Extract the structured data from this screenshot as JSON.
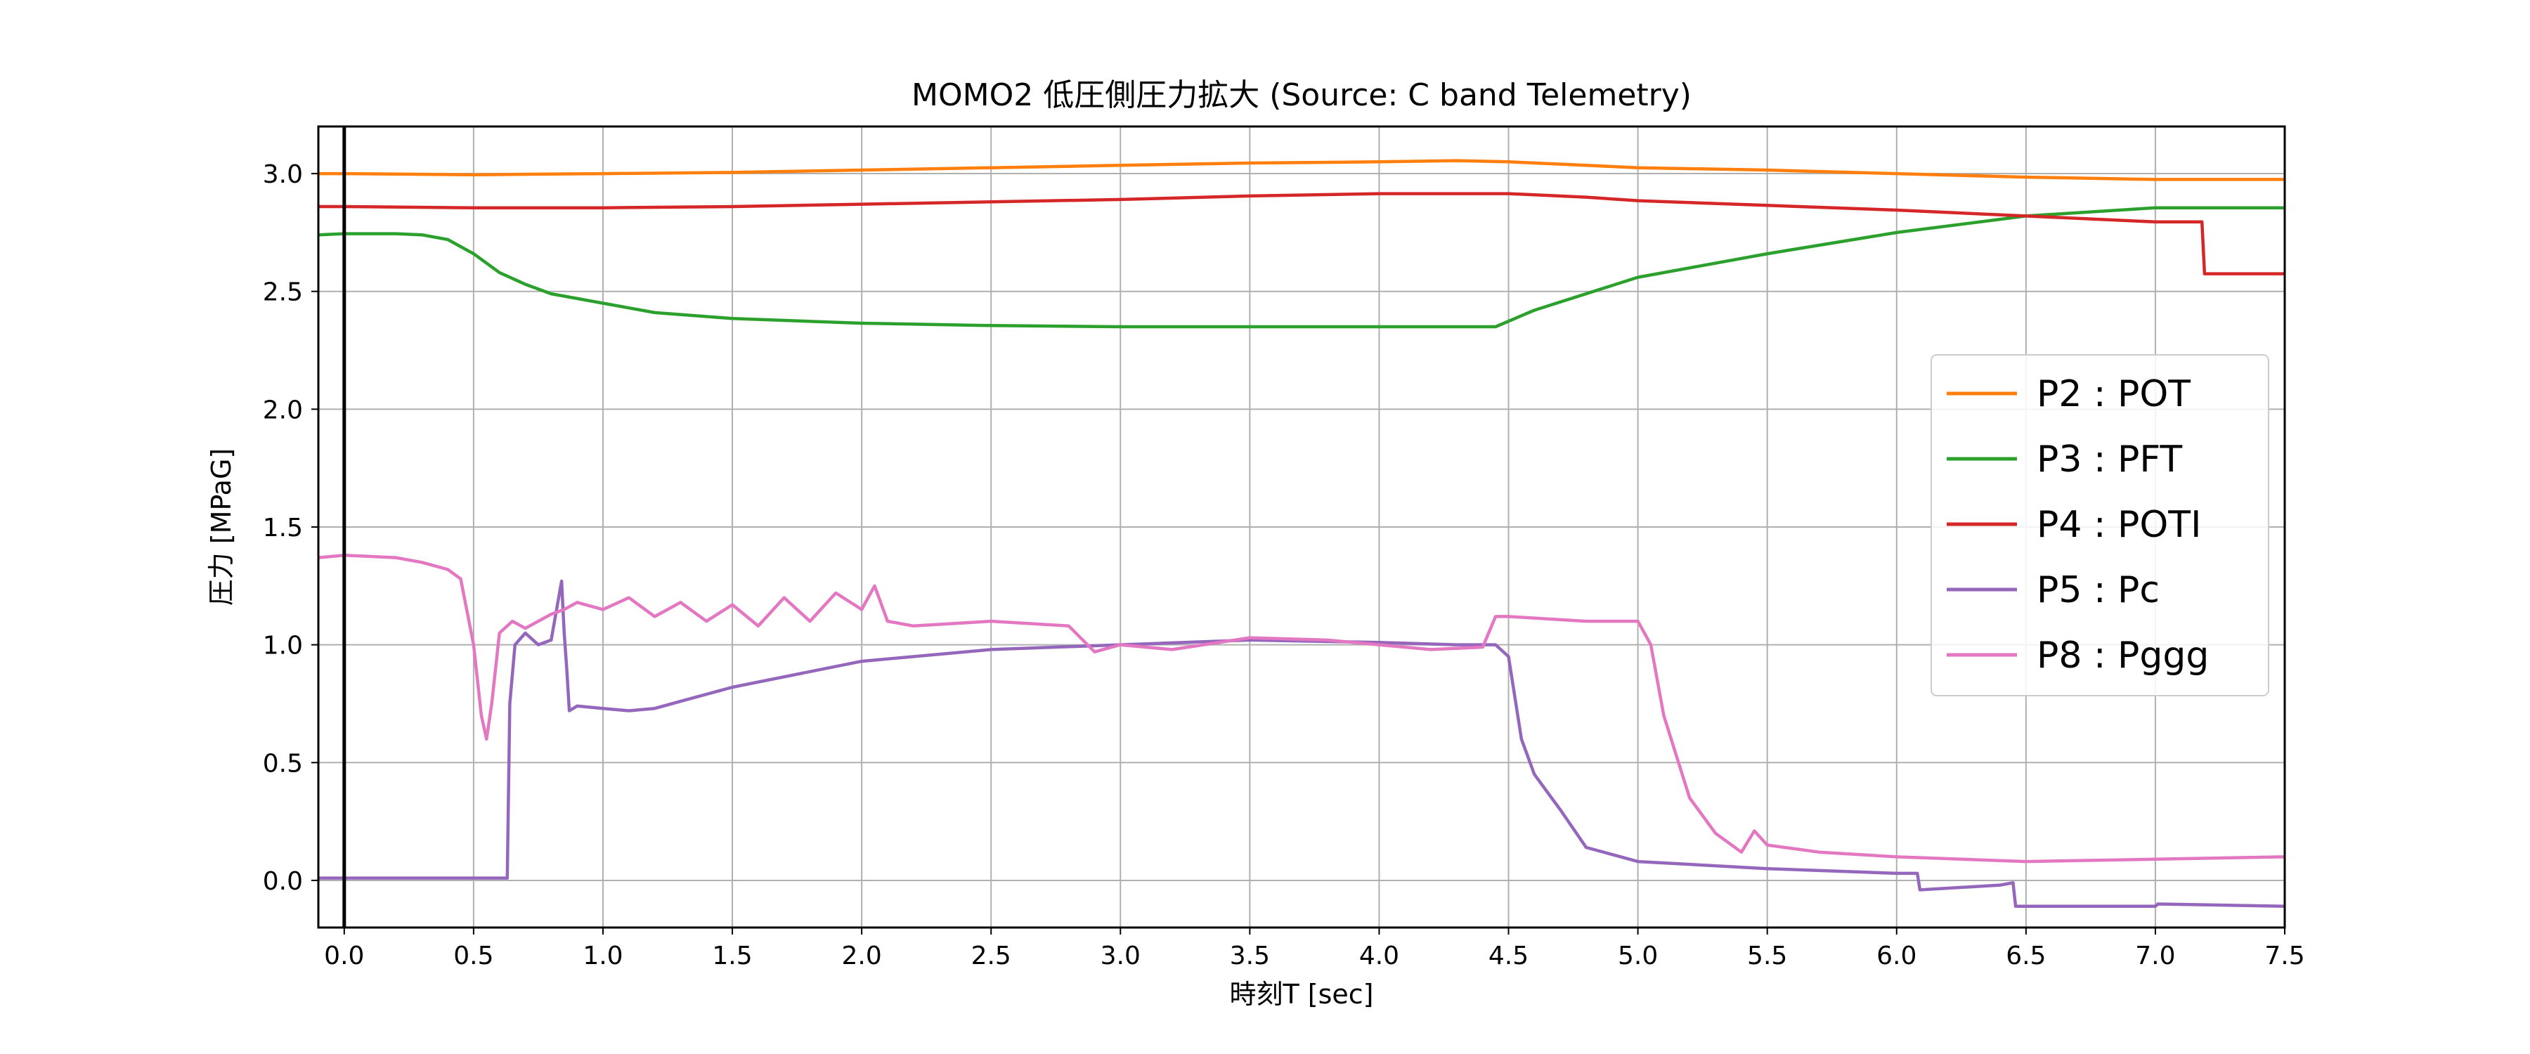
{
  "chart_data": {
    "type": "line",
    "title": "MOMO2 低圧側圧力拡大 (Source: C band Telemetry)",
    "xlabel": "時刻T [sec]",
    "ylabel": "圧力 [MPaG]",
    "xlim": [
      -0.1,
      7.5
    ],
    "ylim": [
      -0.2,
      3.2
    ],
    "x_ticks": [
      0.0,
      0.5,
      1.0,
      1.5,
      2.0,
      2.5,
      3.0,
      3.5,
      4.0,
      4.5,
      5.0,
      5.5,
      6.0,
      6.5,
      7.0,
      7.5
    ],
    "x_tick_labels": [
      "0.0",
      "0.5",
      "1.0",
      "1.5",
      "2.0",
      "2.5",
      "3.0",
      "3.5",
      "4.0",
      "4.5",
      "5.0",
      "5.5",
      "6.0",
      "6.5",
      "7.0",
      "7.5"
    ],
    "y_ticks": [
      0.0,
      0.5,
      1.0,
      1.5,
      2.0,
      2.5,
      3.0
    ],
    "y_tick_labels": [
      "0.0",
      "0.5",
      "1.0",
      "1.5",
      "2.0",
      "2.5",
      "3.0"
    ],
    "grid": true,
    "legend_position": "center-right",
    "vline_x": 0.0,
    "series": [
      {
        "name": "P2 : POT",
        "color": "#ff7f0e",
        "x": [
          -0.1,
          0.0,
          0.5,
          1.0,
          1.5,
          2.0,
          2.5,
          3.0,
          3.5,
          4.0,
          4.3,
          4.5,
          4.8,
          5.0,
          5.5,
          6.0,
          6.5,
          7.0,
          7.5
        ],
        "y": [
          3.0,
          3.0,
          2.995,
          3.0,
          3.005,
          3.015,
          3.025,
          3.035,
          3.045,
          3.05,
          3.055,
          3.05,
          3.035,
          3.025,
          3.015,
          3.0,
          2.985,
          2.975,
          2.975
        ]
      },
      {
        "name": "P3 : PFT",
        "color": "#2ca02c",
        "x": [
          -0.1,
          0.0,
          0.1,
          0.2,
          0.3,
          0.4,
          0.5,
          0.6,
          0.7,
          0.8,
          1.0,
          1.2,
          1.5,
          2.0,
          2.5,
          3.0,
          3.5,
          4.0,
          4.45,
          4.6,
          5.0,
          5.5,
          6.0,
          6.5,
          7.0,
          7.5
        ],
        "y": [
          2.74,
          2.745,
          2.745,
          2.745,
          2.74,
          2.72,
          2.66,
          2.58,
          2.53,
          2.49,
          2.45,
          2.41,
          2.385,
          2.365,
          2.355,
          2.35,
          2.35,
          2.35,
          2.35,
          2.42,
          2.56,
          2.66,
          2.75,
          2.82,
          2.855,
          2.855
        ]
      },
      {
        "name": "P4 : POTI",
        "color": "#d62728",
        "x": [
          -0.1,
          0.0,
          0.5,
          1.0,
          1.5,
          2.0,
          2.5,
          3.0,
          3.5,
          4.0,
          4.5,
          4.8,
          5.0,
          5.5,
          6.0,
          6.5,
          7.0,
          7.18,
          7.19,
          7.5
        ],
        "y": [
          2.86,
          2.86,
          2.855,
          2.855,
          2.86,
          2.87,
          2.88,
          2.89,
          2.905,
          2.915,
          2.915,
          2.9,
          2.885,
          2.865,
          2.845,
          2.82,
          2.795,
          2.795,
          2.575,
          2.575
        ]
      },
      {
        "name": "P5 : Pc",
        "color": "#9467bd",
        "x": [
          -0.1,
          0.0,
          0.3,
          0.6,
          0.63,
          0.64,
          0.66,
          0.7,
          0.75,
          0.8,
          0.84,
          0.85,
          0.86,
          0.87,
          0.9,
          1.0,
          1.1,
          1.2,
          1.3,
          1.5,
          2.0,
          2.5,
          3.0,
          3.5,
          4.0,
          4.3,
          4.45,
          4.5,
          4.55,
          4.6,
          4.7,
          4.8,
          5.0,
          5.5,
          6.0,
          6.08,
          6.09,
          6.4,
          6.45,
          6.46,
          7.0,
          7.01,
          7.5
        ],
        "y": [
          0.01,
          0.01,
          0.01,
          0.01,
          0.01,
          0.75,
          1.0,
          1.05,
          1.0,
          1.02,
          1.27,
          1.05,
          0.9,
          0.72,
          0.74,
          0.73,
          0.72,
          0.73,
          0.76,
          0.82,
          0.93,
          0.98,
          1.0,
          1.02,
          1.01,
          1.0,
          1.0,
          0.95,
          0.6,
          0.45,
          0.3,
          0.14,
          0.08,
          0.05,
          0.03,
          0.03,
          -0.04,
          -0.02,
          -0.01,
          -0.11,
          -0.11,
          -0.1,
          -0.11
        ]
      },
      {
        "name": "P8 : Pggg",
        "color": "#e377c2",
        "x": [
          -0.1,
          0.0,
          0.2,
          0.3,
          0.4,
          0.45,
          0.5,
          0.53,
          0.55,
          0.57,
          0.6,
          0.65,
          0.7,
          0.75,
          0.8,
          0.85,
          0.9,
          1.0,
          1.1,
          1.2,
          1.3,
          1.4,
          1.5,
          1.6,
          1.7,
          1.8,
          1.9,
          2.0,
          2.05,
          2.1,
          2.2,
          2.5,
          2.8,
          2.9,
          3.0,
          3.2,
          3.5,
          3.8,
          4.0,
          4.2,
          4.4,
          4.45,
          4.5,
          4.8,
          5.0,
          5.05,
          5.1,
          5.2,
          5.3,
          5.4,
          5.45,
          5.5,
          5.7,
          6.0,
          6.5,
          7.0,
          7.5
        ],
        "y": [
          1.37,
          1.38,
          1.37,
          1.35,
          1.32,
          1.28,
          1.0,
          0.7,
          0.6,
          0.75,
          1.05,
          1.1,
          1.07,
          1.1,
          1.13,
          1.15,
          1.18,
          1.15,
          1.2,
          1.12,
          1.18,
          1.1,
          1.17,
          1.08,
          1.2,
          1.1,
          1.22,
          1.15,
          1.25,
          1.1,
          1.08,
          1.1,
          1.08,
          0.97,
          1.0,
          0.98,
          1.03,
          1.02,
          1.0,
          0.98,
          0.99,
          1.12,
          1.12,
          1.1,
          1.1,
          1.0,
          0.7,
          0.35,
          0.2,
          0.12,
          0.21,
          0.15,
          0.12,
          0.1,
          0.08,
          0.09,
          0.1
        ]
      }
    ]
  }
}
